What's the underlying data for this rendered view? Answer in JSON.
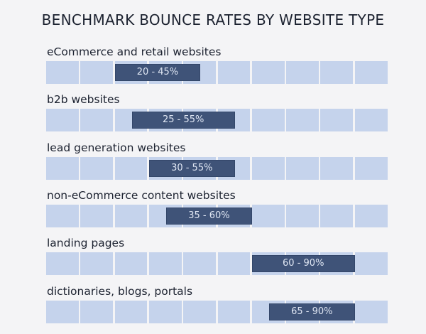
{
  "chart_data": {
    "type": "bar",
    "title": "BENCHMARK BOUNCE RATES BY WEBSITE TYPE",
    "xlim": [
      0,
      100
    ],
    "grid_cells": 10,
    "categories": [
      "eCommerce and retail websites",
      "b2b websites",
      "lead generation websites",
      "non-eCommerce content websites",
      "landing pages",
      "dictionaries, blogs, portals"
    ],
    "ranges": [
      {
        "low": 20,
        "high": 45,
        "label": "20 - 45%"
      },
      {
        "low": 25,
        "high": 55,
        "label": "25 - 55%"
      },
      {
        "low": 30,
        "high": 55,
        "label": "30 - 55%"
      },
      {
        "low": 35,
        "high": 60,
        "label": "35 - 60%"
      },
      {
        "low": 60,
        "high": 90,
        "label": "60 - 90%"
      },
      {
        "low": 65,
        "high": 90,
        "label": "65 - 90%"
      }
    ],
    "colors": {
      "cell": "#c5d3ec",
      "range": "#3f5378",
      "range_text": "#dfe6f3"
    }
  }
}
